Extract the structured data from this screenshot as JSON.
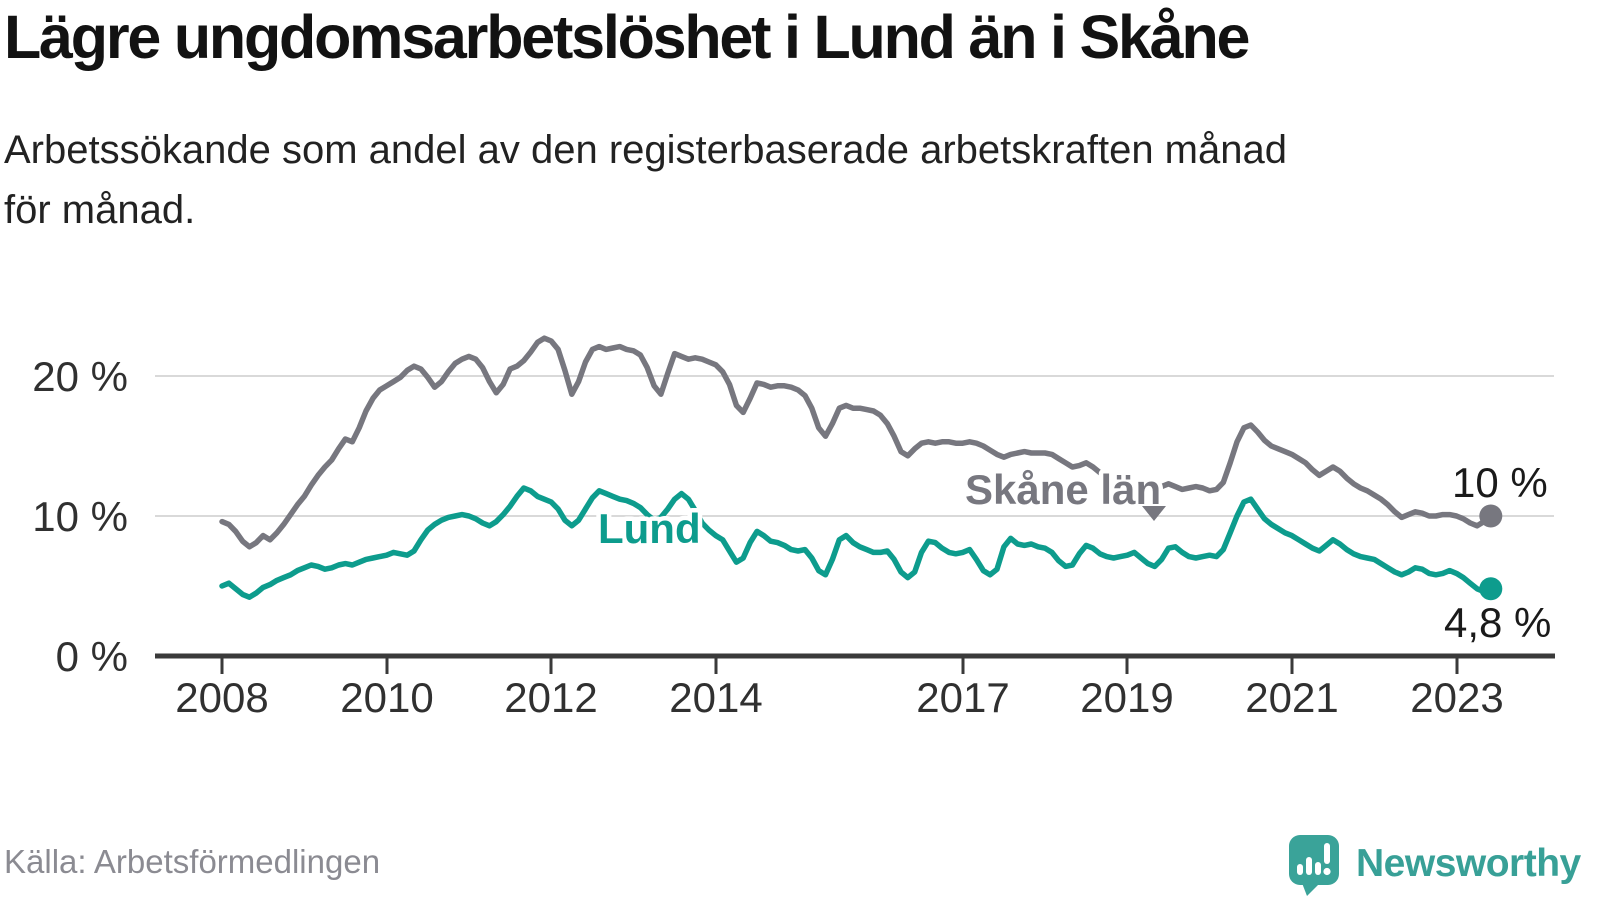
{
  "header": {
    "title": "Lägre ungdomsarbetslöshet i Lund än i Skåne",
    "subtitle_line1": "Arbetssökande som andel av den registerbaserade arbetskraften månad",
    "subtitle_line2": "för månad."
  },
  "chart_data": {
    "type": "line",
    "title": "Lägre ungdomsarbetslöshet i Lund än i Skåne",
    "interval": "monthly",
    "x_range": [
      "2008-01",
      "2023-06"
    ],
    "ylim": [
      0,
      24
    ],
    "grid": "horizontal",
    "yticks": [
      "0 %",
      "10 %",
      "20 %"
    ],
    "xticks": [
      "2008",
      "2010",
      "2012",
      "2014",
      "2017",
      "2019",
      "2021",
      "2023"
    ],
    "series": [
      {
        "name": "Skåne län",
        "id": "skane",
        "color": "#77777f",
        "end_label": "10 %",
        "end_value": 10.0,
        "values": [
          9.6,
          9.4,
          8.9,
          8.2,
          7.8,
          8.1,
          8.6,
          8.3,
          8.8,
          9.4,
          10.1,
          10.8,
          11.4,
          12.2,
          12.9,
          13.5,
          14.0,
          14.8,
          15.5,
          15.3,
          16.3,
          17.5,
          18.4,
          19.0,
          19.3,
          19.6,
          19.9,
          20.4,
          20.7,
          20.5,
          19.9,
          19.2,
          19.6,
          20.3,
          20.9,
          21.2,
          21.4,
          21.2,
          20.6,
          19.6,
          18.8,
          19.4,
          20.5,
          20.7,
          21.1,
          21.7,
          22.4,
          22.7,
          22.5,
          21.9,
          20.4,
          18.7,
          19.6,
          21.0,
          21.9,
          22.1,
          21.9,
          22.0,
          22.1,
          21.9,
          21.8,
          21.5,
          20.6,
          19.3,
          18.7,
          20.2,
          21.6,
          21.4,
          21.2,
          21.3,
          21.2,
          21.0,
          20.8,
          20.3,
          19.4,
          17.9,
          17.4,
          18.4,
          19.5,
          19.4,
          19.2,
          19.3,
          19.3,
          19.2,
          19.0,
          18.6,
          17.7,
          16.3,
          15.7,
          16.6,
          17.7,
          17.9,
          17.7,
          17.7,
          17.6,
          17.5,
          17.2,
          16.6,
          15.7,
          14.6,
          14.3,
          14.8,
          15.2,
          15.3,
          15.2,
          15.3,
          15.3,
          15.2,
          15.2,
          15.3,
          15.2,
          15.0,
          14.7,
          14.4,
          14.2,
          14.4,
          14.5,
          14.6,
          14.5,
          14.5,
          14.5,
          14.4,
          14.1,
          13.8,
          13.5,
          13.6,
          13.8,
          13.5,
          13.1,
          12.8,
          12.6,
          12.4,
          12.3,
          12.2,
          12.0,
          11.9,
          11.9,
          12.1,
          12.3,
          12.1,
          11.9,
          12.0,
          12.1,
          12.0,
          11.8,
          11.9,
          12.4,
          13.8,
          15.3,
          16.3,
          16.5,
          16.0,
          15.4,
          15.0,
          14.8,
          14.6,
          14.4,
          14.1,
          13.8,
          13.3,
          12.9,
          13.2,
          13.5,
          13.2,
          12.7,
          12.3,
          12.0,
          11.8,
          11.5,
          11.2,
          10.8,
          10.3,
          9.9,
          10.1,
          10.3,
          10.2,
          10.0,
          10.0,
          10.1,
          10.1,
          10.0,
          9.8,
          9.5,
          9.3,
          9.6,
          10.0
        ]
      },
      {
        "name": "Lund",
        "id": "lund",
        "color": "#0d9c8d",
        "end_label": "4,8 %",
        "end_value": 4.8,
        "values": [
          5.0,
          5.2,
          4.8,
          4.4,
          4.2,
          4.5,
          4.9,
          5.1,
          5.4,
          5.6,
          5.8,
          6.1,
          6.3,
          6.5,
          6.4,
          6.2,
          6.3,
          6.5,
          6.6,
          6.5,
          6.7,
          6.9,
          7.0,
          7.1,
          7.2,
          7.4,
          7.3,
          7.2,
          7.5,
          8.3,
          9.0,
          9.4,
          9.7,
          9.9,
          10.0,
          10.1,
          10.0,
          9.8,
          9.5,
          9.3,
          9.6,
          10.1,
          10.7,
          11.4,
          12.0,
          11.8,
          11.4,
          11.2,
          11.0,
          10.5,
          9.7,
          9.3,
          9.7,
          10.5,
          11.3,
          11.8,
          11.6,
          11.4,
          11.2,
          11.1,
          10.9,
          10.6,
          10.1,
          9.7,
          9.9,
          10.5,
          11.2,
          11.6,
          11.2,
          10.4,
          9.5,
          9.0,
          8.6,
          8.3,
          7.5,
          6.7,
          7.0,
          8.1,
          8.9,
          8.6,
          8.2,
          8.1,
          7.9,
          7.6,
          7.5,
          7.6,
          7.0,
          6.1,
          5.8,
          6.9,
          8.3,
          8.6,
          8.1,
          7.8,
          7.6,
          7.4,
          7.4,
          7.5,
          6.9,
          6.0,
          5.6,
          6.0,
          7.4,
          8.2,
          8.1,
          7.7,
          7.4,
          7.3,
          7.4,
          7.6,
          6.9,
          6.1,
          5.8,
          6.2,
          7.8,
          8.4,
          8.0,
          7.9,
          8.0,
          7.8,
          7.7,
          7.4,
          6.8,
          6.4,
          6.5,
          7.3,
          7.9,
          7.7,
          7.3,
          7.1,
          7.0,
          7.1,
          7.2,
          7.4,
          7.0,
          6.6,
          6.4,
          6.9,
          7.7,
          7.8,
          7.4,
          7.1,
          7.0,
          7.1,
          7.2,
          7.1,
          7.6,
          8.8,
          10.0,
          11.0,
          11.2,
          10.5,
          9.8,
          9.4,
          9.1,
          8.8,
          8.6,
          8.3,
          8.0,
          7.7,
          7.5,
          7.9,
          8.3,
          8.0,
          7.6,
          7.3,
          7.1,
          7.0,
          6.9,
          6.6,
          6.3,
          6.0,
          5.8,
          6.0,
          6.3,
          6.2,
          5.9,
          5.8,
          5.9,
          6.1,
          5.9,
          5.6,
          5.2,
          4.8,
          4.6,
          4.8
        ]
      }
    ]
  },
  "footer": {
    "source": "Källa: Arbetsförmedlingen",
    "brand": "Newsworthy",
    "brand_color": "#38a097"
  }
}
